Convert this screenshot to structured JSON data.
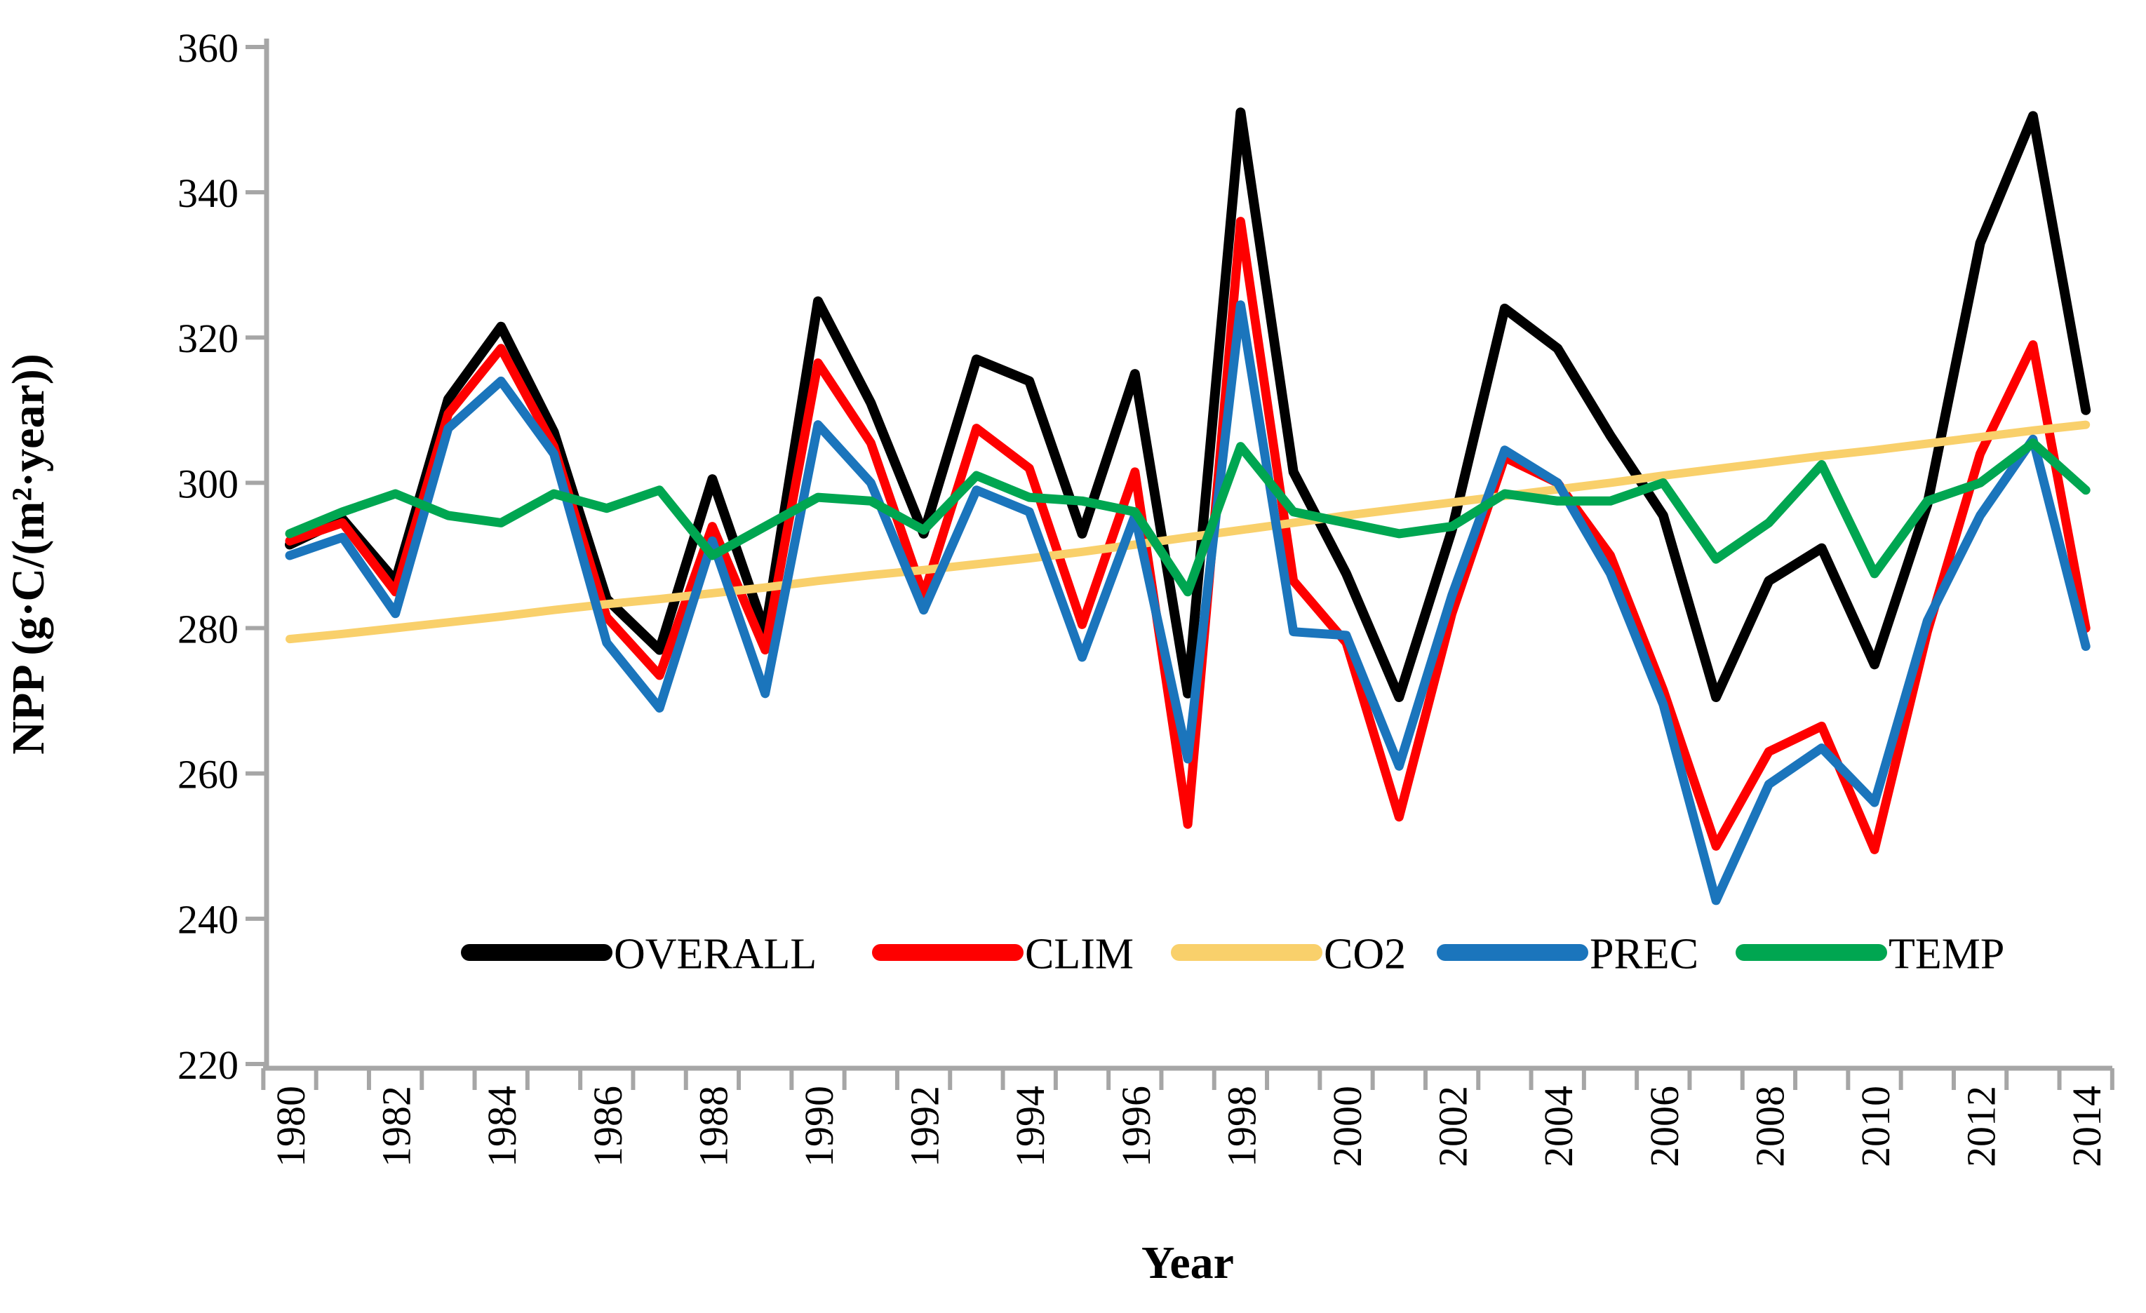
{
  "chart_data": {
    "type": "line",
    "title": "",
    "xlabel": "Year",
    "ylabel": "NPP (g·C/(m²·year))",
    "x": [
      1980,
      1981,
      1982,
      1983,
      1984,
      1985,
      1986,
      1987,
      1988,
      1989,
      1990,
      1991,
      1992,
      1993,
      1994,
      1995,
      1996,
      1997,
      1998,
      1999,
      2000,
      2001,
      2002,
      2003,
      2004,
      2005,
      2006,
      2007,
      2008,
      2009,
      2010,
      2011,
      2012,
      2013,
      2014
    ],
    "x_tick_labels": [
      "1980",
      "1982",
      "1984",
      "1986",
      "1988",
      "1990",
      "1992",
      "1994",
      "1996",
      "1998",
      "2000",
      "2002",
      "2004",
      "2006",
      "2008",
      "2010",
      "2012",
      "2014"
    ],
    "ylim": [
      220,
      360
    ],
    "y_ticks": [
      220,
      240,
      260,
      280,
      300,
      320,
      340,
      360
    ],
    "grid": "off",
    "legend_position": "inside-bottom",
    "series": [
      {
        "name": "OVERALL",
        "color": "#000000",
        "stroke_width": 14,
        "values": [
          291.5,
          295,
          286.5,
          311.5,
          321.5,
          307,
          284,
          277,
          300.5,
          279.5,
          325,
          311,
          293,
          317,
          314,
          293,
          315,
          271,
          351,
          301.5,
          287.5,
          270.5,
          293.5,
          324,
          318.5,
          306.5,
          295.5,
          270.5,
          286.5,
          291,
          275,
          297,
          333,
          350.5,
          310
        ]
      },
      {
        "name": "CLIM",
        "color": "#FE0000",
        "stroke_width": 13,
        "values": [
          292,
          294.5,
          285,
          309.5,
          318.5,
          305,
          281.5,
          273.5,
          294,
          277,
          316.5,
          305.5,
          284.5,
          307.5,
          302,
          280.5,
          301.5,
          253,
          336,
          286.5,
          278,
          254,
          282,
          303.5,
          300,
          290,
          271.5,
          250,
          263,
          266.5,
          249.5,
          279.5,
          304,
          319,
          280
        ]
      },
      {
        "name": "CO2",
        "color": "#F9D06B",
        "stroke_width": 12,
        "values": [
          278.5,
          279.2,
          280,
          280.8,
          281.6,
          282.5,
          283.3,
          284,
          284.8,
          285.6,
          286.5,
          287.3,
          288,
          288.8,
          289.6,
          290.5,
          291.5,
          292.5,
          293.5,
          294.5,
          295.5,
          296.4,
          297.3,
          298.2,
          299.1,
          300,
          301,
          301.9,
          302.8,
          303.7,
          304.5,
          305.4,
          306.3,
          307.2,
          308
        ]
      },
      {
        "name": "PREC",
        "color": "#1B75BC",
        "stroke_width": 13,
        "values": [
          290,
          292.5,
          282,
          307.5,
          314,
          304,
          278,
          269,
          292,
          271,
          308,
          300,
          282.5,
          299,
          296,
          276,
          295.5,
          262,
          324.5,
          279.5,
          279,
          261,
          284.5,
          304.5,
          300,
          287.5,
          269.5,
          242.5,
          258.5,
          263.5,
          256,
          281,
          295.5,
          306,
          277.5
        ]
      },
      {
        "name": "TEMP",
        "color": "#00A651",
        "stroke_width": 13,
        "values": [
          293,
          296,
          298.5,
          295.5,
          294.5,
          298.5,
          296.5,
          299,
          290,
          294,
          298,
          297.5,
          293.5,
          301,
          298,
          297.5,
          296,
          285,
          305,
          296,
          294.5,
          293,
          294,
          298.5,
          297.5,
          297.5,
          300,
          289.5,
          294.5,
          302.5,
          287.5,
          297.5,
          300,
          305.5,
          299
        ]
      }
    ],
    "axis_color": "#A6A6A6"
  },
  "legend": {
    "items": [
      {
        "label": "OVERALL",
        "color": "#000000"
      },
      {
        "label": "CLIM",
        "color": "#FE0000"
      },
      {
        "label": "CO2",
        "color": "#F9D06B"
      },
      {
        "label": "PREC",
        "color": "#1B75BC"
      },
      {
        "label": "TEMP",
        "color": "#00A651"
      }
    ]
  }
}
